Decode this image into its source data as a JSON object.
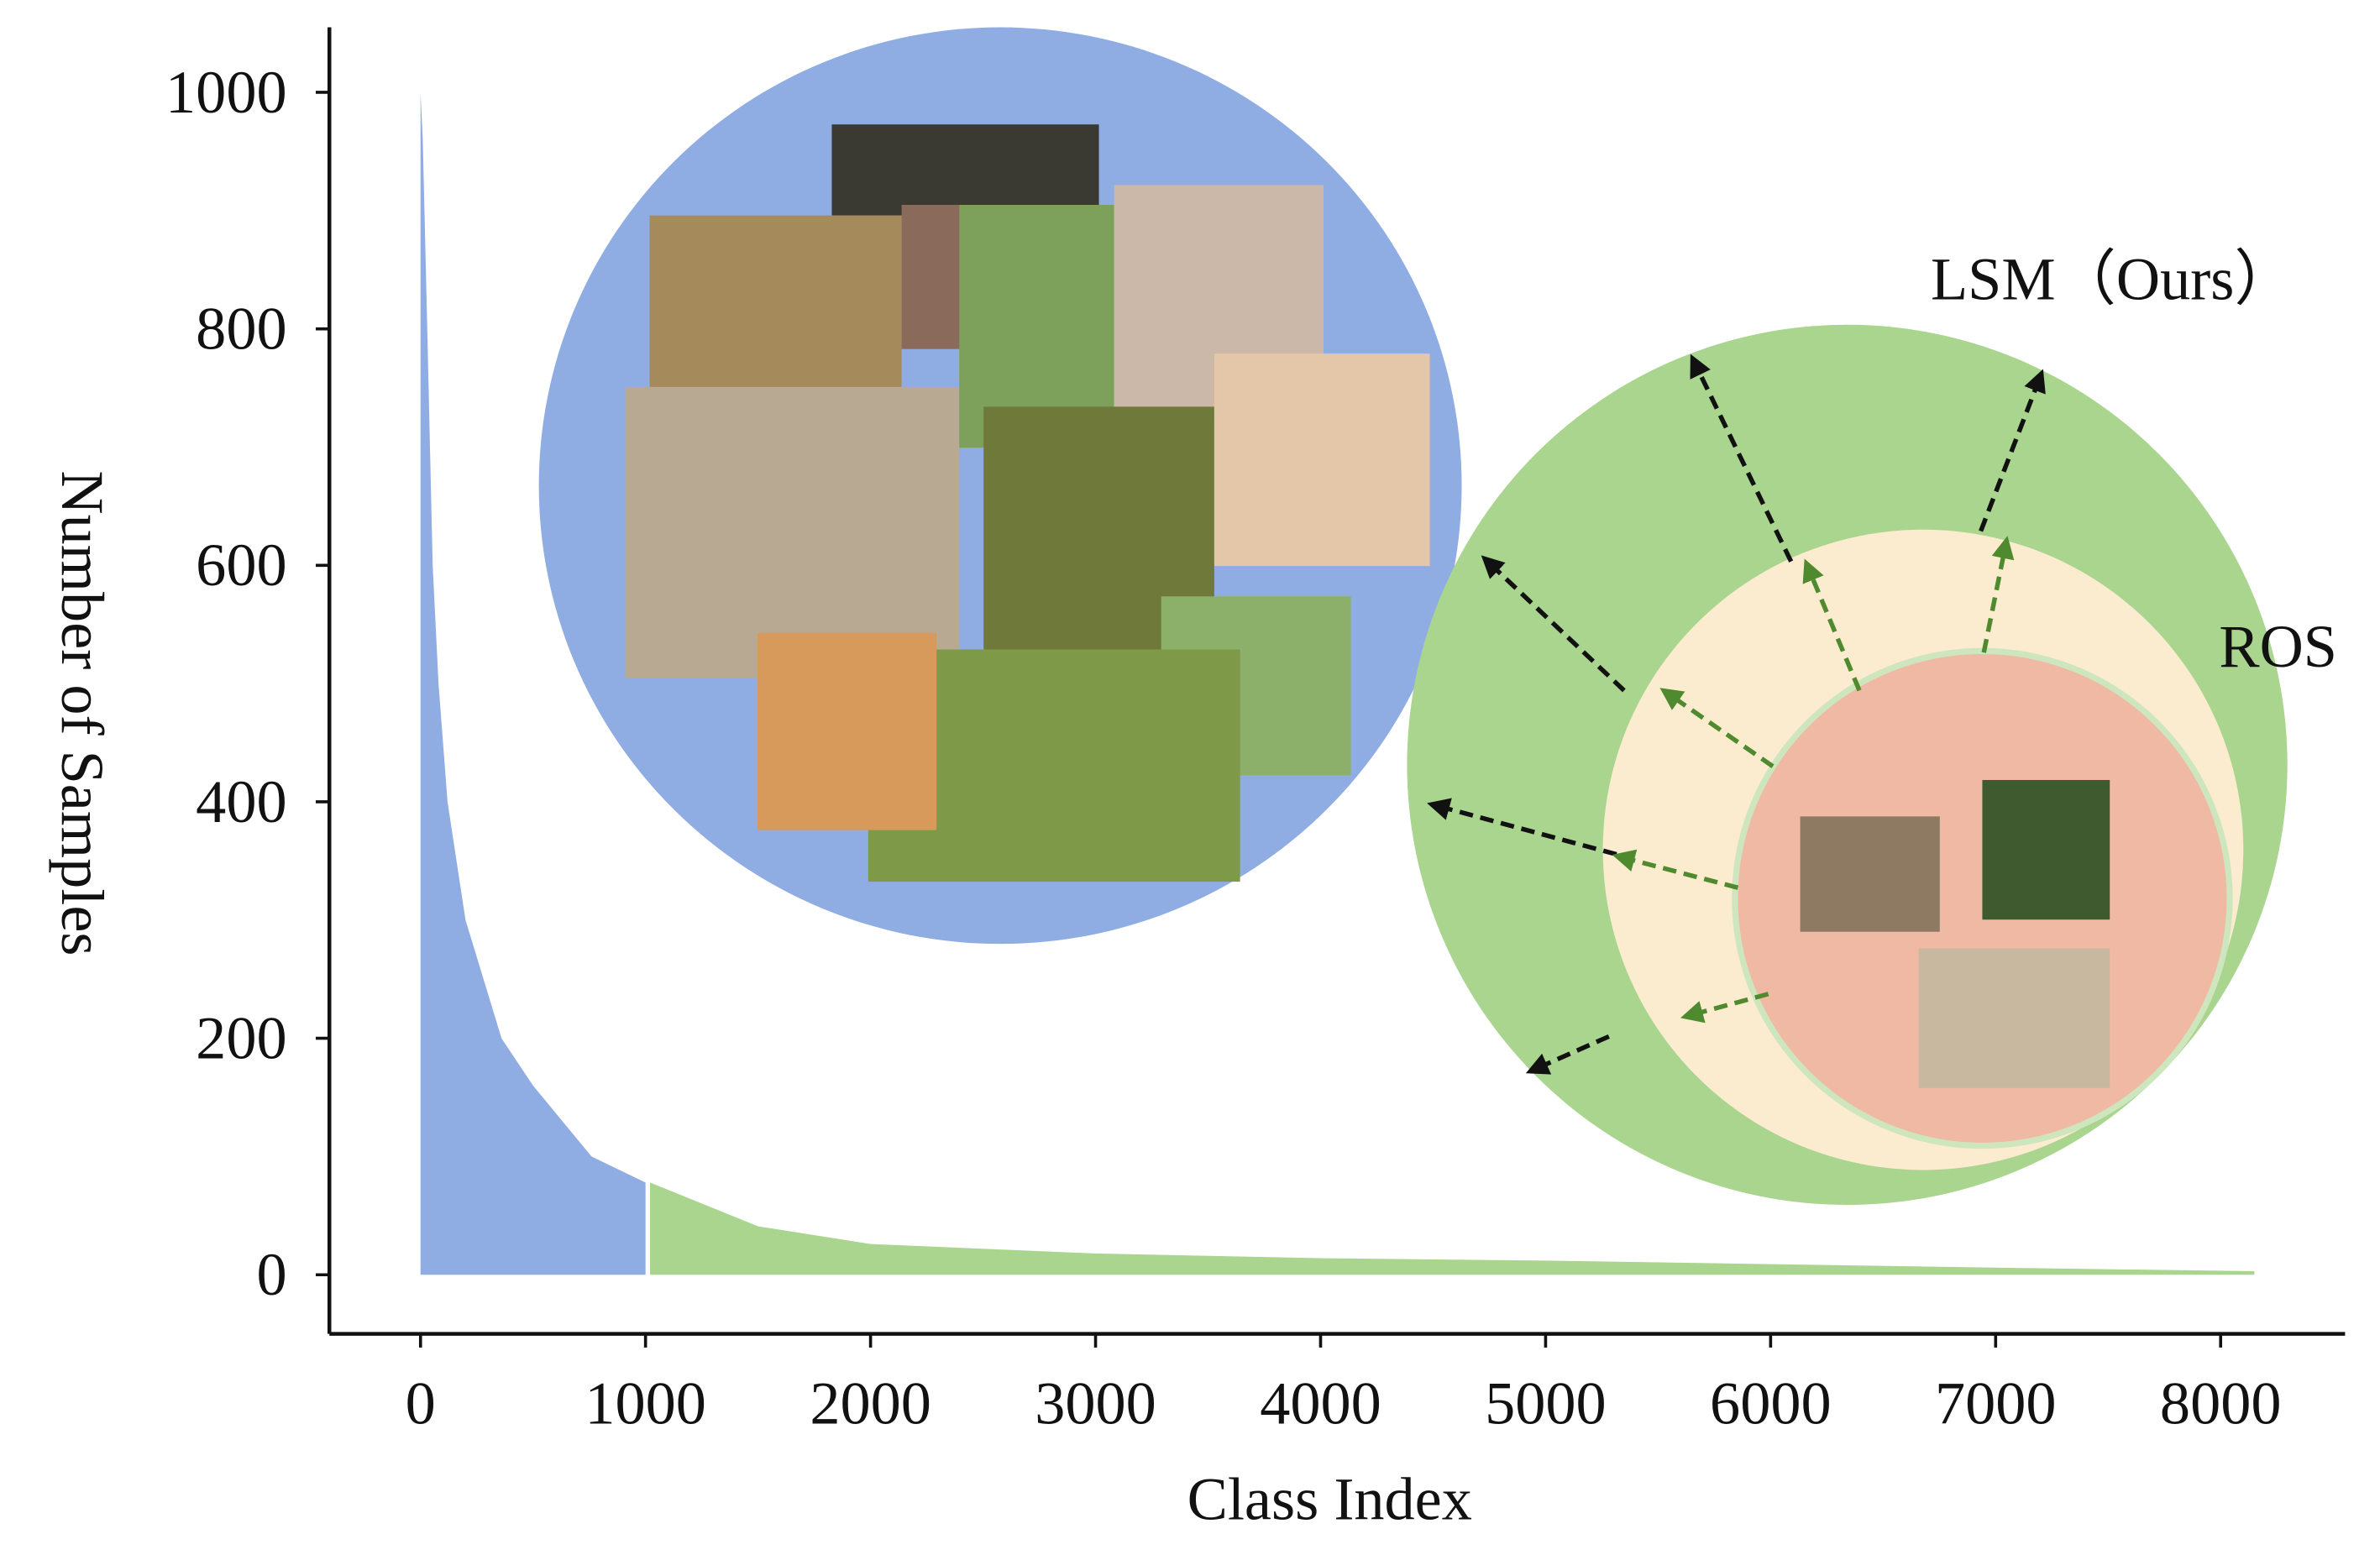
{
  "chart_data": {
    "type": "area",
    "xlabel": "Class Index",
    "ylabel": "Number of Samples",
    "annotations": [
      "LSM（Ours）",
      "ROS"
    ],
    "series": [
      {
        "color": "#8fade2",
        "x": [
          0,
          10,
          30,
          54,
          80,
          120,
          200,
          360,
          500,
          760,
          1000
        ],
        "values": [
          1000,
          960,
          800,
          600,
          500,
          400,
          300,
          200,
          160,
          100,
          78
        ]
      },
      {
        "color": "#a9d58e",
        "x": [
          1020,
          1500,
          2000,
          3000,
          4000,
          5000,
          6000,
          7000,
          8150
        ],
        "values": [
          78,
          41,
          26,
          18,
          14,
          12,
          9,
          6,
          3
        ]
      }
    ],
    "xlim": [
      -405,
      8553
    ],
    "ylim": [
      -50,
      1055
    ],
    "xticks": [
      0,
      1000,
      2000,
      3000,
      4000,
      5000,
      6000,
      7000,
      8000
    ],
    "yticks": [
      0,
      200,
      400,
      600,
      800,
      1000
    ]
  }
}
